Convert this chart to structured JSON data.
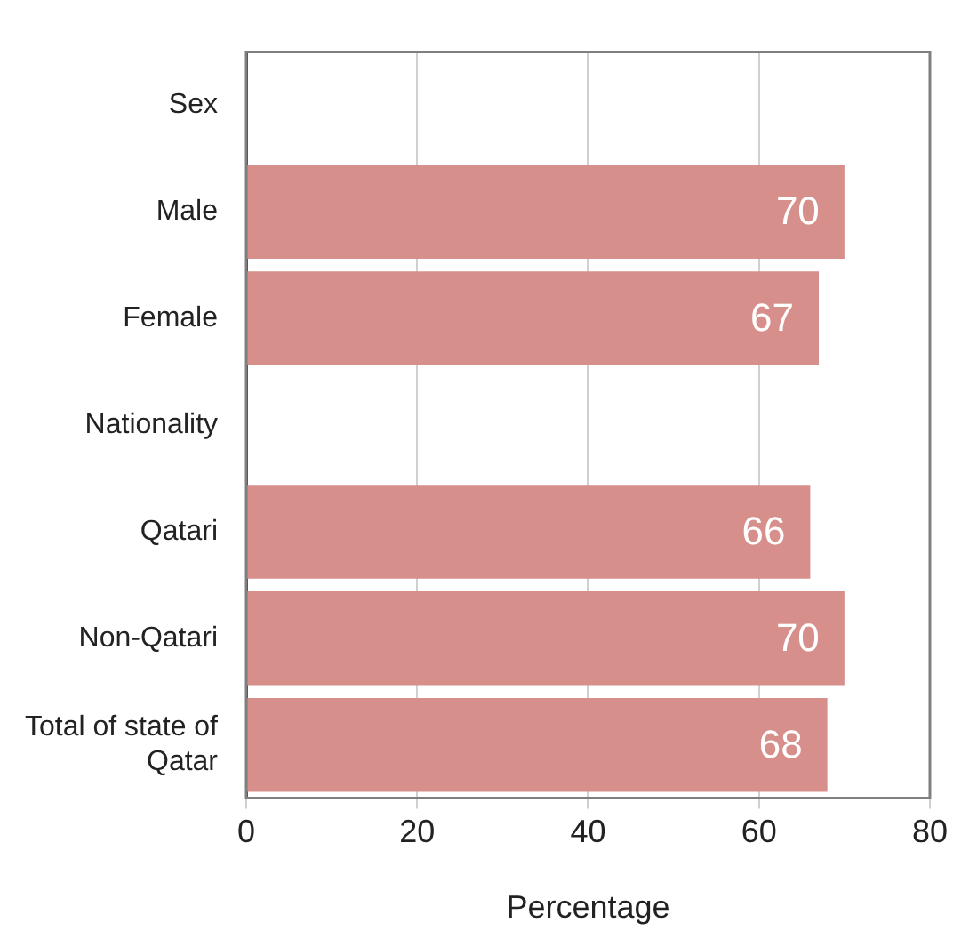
{
  "chart_data": {
    "type": "bar",
    "orientation": "horizontal",
    "xlabel": "Percentage",
    "categories": [
      "Sex",
      "Male",
      "Female",
      "Nationality",
      "Qatari",
      "Non-Qatari",
      "Total of state of Qatar"
    ],
    "values": [
      null,
      70,
      67,
      null,
      66,
      70,
      68
    ],
    "color": "#d68f8a",
    "xlim": [
      0,
      80
    ],
    "xticks": [
      0,
      20,
      40,
      60,
      80
    ],
    "grid": "x",
    "data_labels": true,
    "legend": false
  }
}
